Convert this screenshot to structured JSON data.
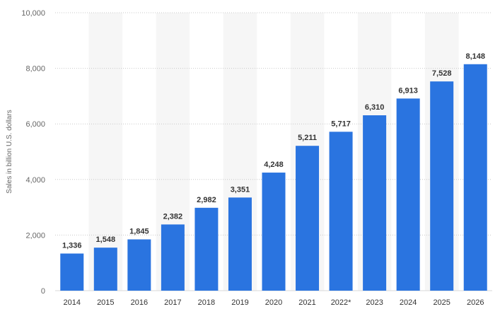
{
  "chart_data": {
    "type": "bar",
    "categories": [
      "2014",
      "2015",
      "2016",
      "2017",
      "2018",
      "2019",
      "2020",
      "2021",
      "2022*",
      "2023",
      "2024",
      "2025",
      "2026"
    ],
    "values": [
      1336,
      1548,
      1845,
      2382,
      2982,
      3351,
      4248,
      5211,
      5717,
      6310,
      6913,
      7528,
      8148
    ],
    "value_labels": [
      "1,336",
      "1,548",
      "1,845",
      "2,382",
      "2,982",
      "3,351",
      "4,248",
      "5,211",
      "5,717",
      "6,310",
      "6,913",
      "7,528",
      "8,148"
    ],
    "title": "",
    "xlabel": "",
    "ylabel": "Sales in billion U.S. dollars",
    "ylim": [
      0,
      10000
    ],
    "yticks": [
      0,
      2000,
      4000,
      6000,
      8000,
      10000
    ],
    "ytick_labels": [
      "0",
      "2,000",
      "4,000",
      "6,000",
      "8,000",
      "10,000"
    ],
    "grid": true,
    "legend": "none",
    "colors": {
      "bar": "#2a74e0",
      "band": "#f6f6f6",
      "grid": "#c9c9c9"
    }
  }
}
